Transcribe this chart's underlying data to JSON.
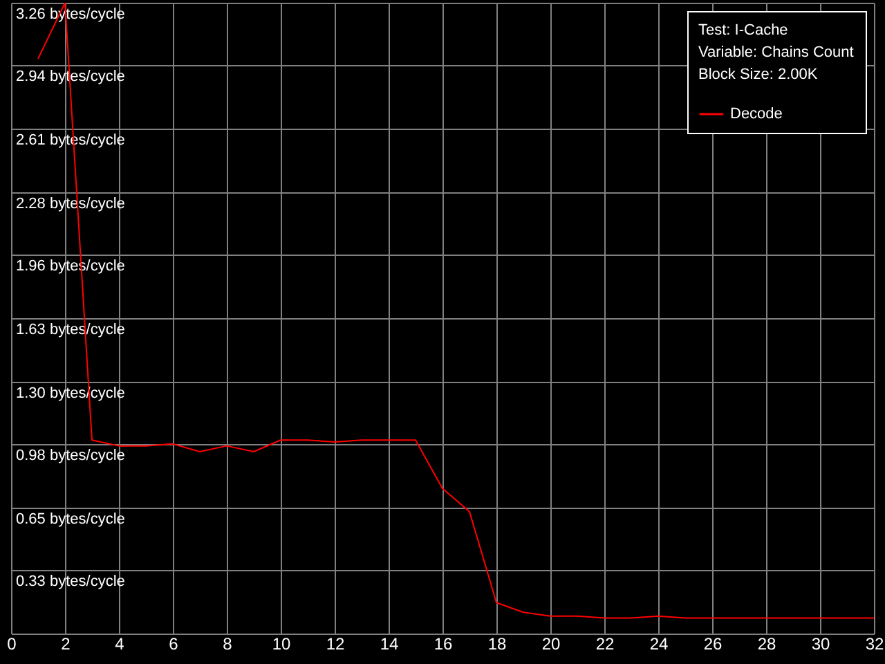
{
  "chart_data": {
    "type": "line",
    "legend_title": "Test: I-Cache\nVariable: Chains Count\nBlock Size: 2.00K",
    "x": [
      1,
      2,
      3,
      4,
      5,
      6,
      7,
      8,
      9,
      10,
      11,
      12,
      13,
      14,
      15,
      16,
      17,
      18,
      19,
      20,
      21,
      22,
      23,
      24,
      25,
      26,
      27,
      28,
      29,
      30,
      31,
      32
    ],
    "series": [
      {
        "name": "Decode",
        "color": "#ff0000",
        "values": [
          2.97,
          3.26,
          1.0,
          0.97,
          0.97,
          0.98,
          0.94,
          0.97,
          0.94,
          1.0,
          1.0,
          0.99,
          1.0,
          1.0,
          1.0,
          0.75,
          0.63,
          0.16,
          0.11,
          0.09,
          0.09,
          0.08,
          0.08,
          0.09,
          0.08,
          0.08,
          0.08,
          0.08,
          0.08,
          0.08,
          0.08,
          0.08
        ]
      }
    ],
    "xlim": [
      0,
      32
    ],
    "xticks": [
      0,
      2,
      4,
      6,
      8,
      10,
      12,
      14,
      16,
      18,
      20,
      22,
      24,
      26,
      28,
      30,
      32
    ],
    "ylim": [
      0,
      3.26
    ],
    "yticks": [
      {
        "value": 0,
        "label": null
      },
      {
        "value": 0.33,
        "label": "0.33 bytes/cycle"
      },
      {
        "value": 0.65,
        "label": "0.65 bytes/cycle"
      },
      {
        "value": 0.98,
        "label": "0.98 bytes/cycle"
      },
      {
        "value": 1.3,
        "label": "1.30 bytes/cycle"
      },
      {
        "value": 1.63,
        "label": "1.63 bytes/cycle"
      },
      {
        "value": 1.96,
        "label": "1.96 bytes/cycle"
      },
      {
        "value": 2.28,
        "label": "2.28 bytes/cycle"
      },
      {
        "value": 2.61,
        "label": "2.61 bytes/cycle"
      },
      {
        "value": 2.94,
        "label": "2.94 bytes/cycle"
      },
      {
        "value": 3.26,
        "label": "3.26 bytes/cycle"
      }
    ],
    "grid": true,
    "legend": "top right",
    "marker": "none",
    "line_style": "solid"
  }
}
